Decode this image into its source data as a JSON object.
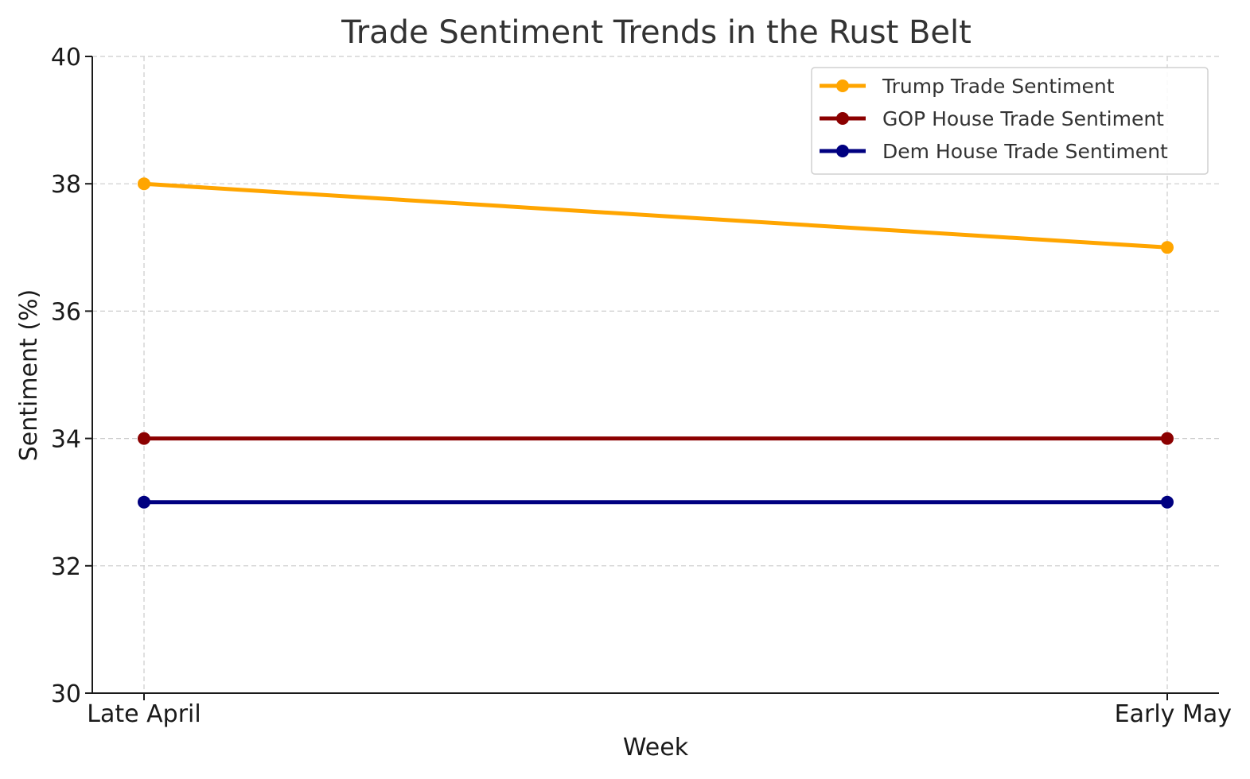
{
  "chart_data": {
    "type": "line",
    "title": "Trade Sentiment Trends in the Rust Belt",
    "xlabel": "Week",
    "ylabel": "Sentiment (%)",
    "categories": [
      "Late April",
      "Early May"
    ],
    "ylim": [
      30,
      40
    ],
    "yticks": [
      30,
      32,
      34,
      36,
      38,
      40
    ],
    "grid": true,
    "legend_position": "top-right",
    "series": [
      {
        "name": "Trump Trade Sentiment",
        "values": [
          38,
          37
        ],
        "color": "#FFA500"
      },
      {
        "name": "GOP House Trade Sentiment",
        "values": [
          34,
          34
        ],
        "color": "#8B0000"
      },
      {
        "name": "Dem House Trade Sentiment",
        "values": [
          33,
          33
        ],
        "color": "#000080"
      }
    ]
  }
}
